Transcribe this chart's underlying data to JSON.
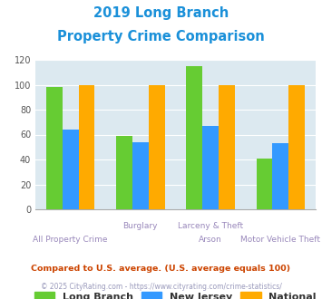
{
  "title_line1": "2019 Long Branch",
  "title_line2": "Property Crime Comparison",
  "title_color": "#1a90d9",
  "long_branch": [
    98,
    59,
    115,
    41
  ],
  "new_jersey": [
    64,
    54,
    67,
    53
  ],
  "national": [
    100,
    100,
    100,
    100
  ],
  "long_branch_color": "#66cc33",
  "new_jersey_color": "#3399ff",
  "national_color": "#ffaa00",
  "ylim": [
    0,
    120
  ],
  "yticks": [
    0,
    20,
    40,
    60,
    80,
    100,
    120
  ],
  "background_color": "#dce9f0",
  "legend_labels": [
    "Long Branch",
    "New Jersey",
    "National"
  ],
  "label_color": "#9988bb",
  "top_labels": [
    "",
    "Burglary",
    "Larceny & Theft",
    ""
  ],
  "bot_labels": [
    "All Property Crime",
    "",
    "Arson",
    "Motor Vehicle Theft"
  ],
  "footnote1": "Compared to U.S. average. (U.S. average equals 100)",
  "footnote2": "© 2025 CityRating.com - https://www.cityrating.com/crime-statistics/",
  "footnote1_color": "#cc4400",
  "footnote2_color": "#9999bb"
}
